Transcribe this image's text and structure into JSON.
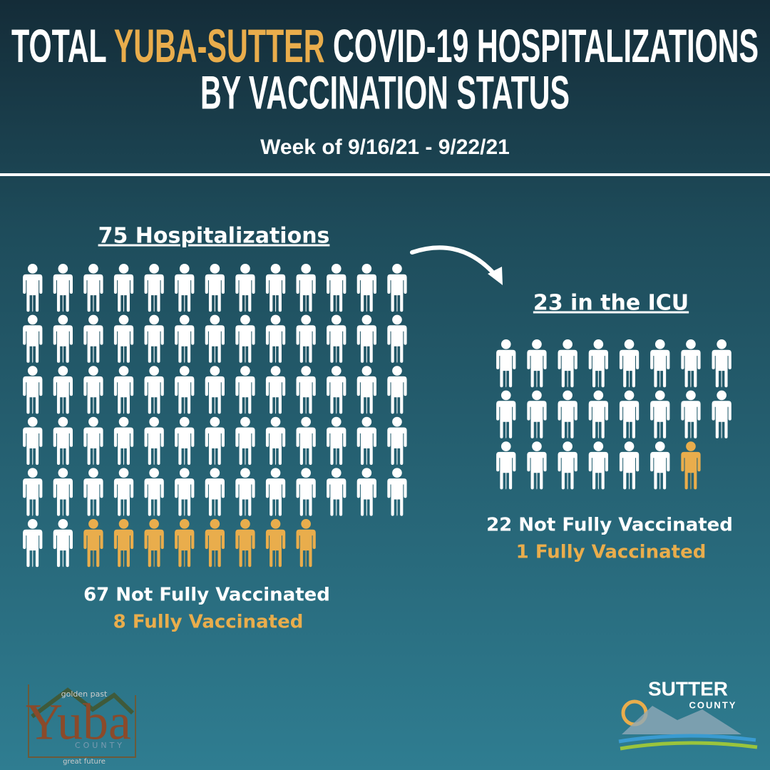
{
  "header": {
    "title_parts": [
      "TOTAL ",
      "YUBA-SUTTER",
      " COVID-19 HOSPITALIZATIONS"
    ],
    "title_line2": "BY VACCINATION STATUS",
    "subtitle": "Week of 9/16/21 - 9/22/21"
  },
  "panels": [
    {
      "title": "75 Hospitalizations",
      "groups": [
        {
          "label": "67 Not Fully Vaccinated",
          "count": 67,
          "color": "#ffffff"
        },
        {
          "label": "8 Fully Vaccinated",
          "count": 8,
          "color": "#e9ad4c"
        }
      ]
    },
    {
      "title": "23 in the ICU",
      "groups": [
        {
          "label": "22 Not Fully Vaccinated",
          "count": 22,
          "color": "#ffffff"
        },
        {
          "label": "1 Fully Vaccinated",
          "count": 1,
          "color": "#e9ad4c"
        }
      ]
    }
  ],
  "logos": {
    "yuba": {
      "top": "golden past",
      "name": "Yuba",
      "county": "COUNTY",
      "bottom": "great future"
    },
    "sutter": {
      "name": "SUTTER",
      "county": "COUNTY"
    }
  }
}
